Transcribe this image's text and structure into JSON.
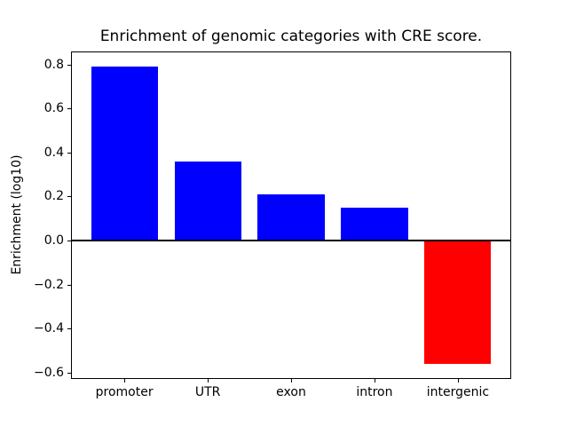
{
  "chart_data": {
    "type": "bar",
    "title": "Enrichment of genomic categories with CRE score.",
    "xlabel": "",
    "ylabel": "Enrichment (log10)",
    "categories": [
      "promoter",
      "UTR",
      "exon",
      "intron",
      "intergenic"
    ],
    "values": [
      0.79,
      0.36,
      0.21,
      0.15,
      -0.56
    ],
    "positive_color": "#0000ff",
    "negative_color": "#ff0000",
    "ylim": [
      -0.63,
      0.86
    ],
    "xlim": [
      -0.64,
      4.64
    ],
    "bar_width": 0.8,
    "yticks": [
      {
        "value": 0.8,
        "label": "0.8"
      },
      {
        "value": 0.6,
        "label": "0.6"
      },
      {
        "value": 0.4,
        "label": "0.4"
      },
      {
        "value": 0.2,
        "label": "0.2"
      },
      {
        "value": 0.0,
        "label": "0.0"
      },
      {
        "value": -0.2,
        "label": "−0.2"
      },
      {
        "value": -0.4,
        "label": "−0.4"
      },
      {
        "value": -0.6,
        "label": "−0.6"
      }
    ],
    "zero_line": true,
    "grid": false,
    "legend": null,
    "axis_color": "#000000",
    "background_color": "#ffffff"
  }
}
